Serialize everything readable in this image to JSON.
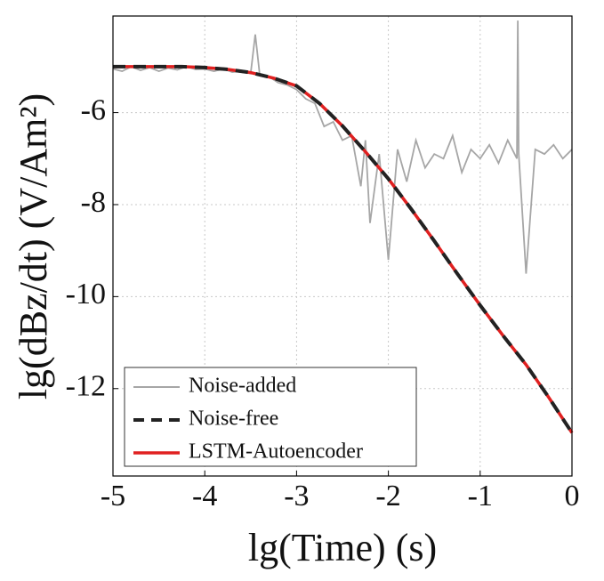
{
  "chart_data": {
    "type": "line",
    "xlabel": "lg(Time) (s)",
    "ylabel": "lg(dBz/dt) (V/Am²)",
    "xlim": [
      -5,
      0
    ],
    "xticks": [
      -5,
      -4,
      -3,
      -2,
      -1,
      0
    ],
    "ylim": [
      -13.9,
      -3.9
    ],
    "yticks": [
      -12,
      -10,
      -8,
      -6
    ],
    "grid": true,
    "legend": "lower left",
    "series": [
      {
        "name": "Noise-added",
        "color": "#a6a6a6",
        "linestyle": "solid",
        "x": [
          -5,
          -4.9,
          -4.8,
          -4.7,
          -4.6,
          -4.5,
          -4.4,
          -4.3,
          -4.2,
          -4.1,
          -4.0,
          -3.9,
          -3.8,
          -3.7,
          -3.6,
          -3.5,
          -3.45,
          -3.4,
          -3.3,
          -3.2,
          -3.1,
          -3.0,
          -2.9,
          -2.8,
          -2.7,
          -2.6,
          -2.5,
          -2.4,
          -2.3,
          -2.25,
          -2.2,
          -2.1,
          -2.0,
          -1.9,
          -1.8,
          -1.7,
          -1.6,
          -1.5,
          -1.4,
          -1.3,
          -1.2,
          -1.1,
          -1.0,
          -0.9,
          -0.8,
          -0.7,
          -0.6,
          -0.59,
          -0.58,
          -0.5,
          -0.4,
          -0.3,
          -0.2,
          -0.1,
          0
        ],
        "values": [
          -5.05,
          -5.1,
          -5.0,
          -5.08,
          -5.02,
          -5.1,
          -5.03,
          -5.07,
          -5.0,
          -5.06,
          -5.05,
          -5.1,
          -5.05,
          -5.12,
          -5.1,
          -5.15,
          -4.3,
          -5.2,
          -5.22,
          -5.35,
          -5.4,
          -5.5,
          -5.7,
          -5.8,
          -6.3,
          -6.2,
          -6.6,
          -6.5,
          -7.6,
          -6.6,
          -8.4,
          -6.9,
          -9.2,
          -6.8,
          -7.5,
          -6.6,
          -7.2,
          -6.9,
          -7.0,
          -6.5,
          -7.3,
          -6.8,
          -7.0,
          -6.7,
          -7.1,
          -6.6,
          -7.0,
          -4.0,
          -6.9,
          -9.5,
          -6.8,
          -6.9,
          -6.7,
          -7.0,
          -6.8
        ]
      },
      {
        "name": "Noise-free",
        "color": "#222222",
        "linestyle": "dashed",
        "x": [
          -5,
          -4.75,
          -4.5,
          -4.25,
          -4,
          -3.75,
          -3.5,
          -3.25,
          -3,
          -2.75,
          -2.5,
          -2.25,
          -2,
          -1.75,
          -1.5,
          -1.25,
          -1,
          -0.75,
          -0.5,
          -0.25,
          0
        ],
        "values": [
          -5.0,
          -5.0,
          -5.0,
          -5.0,
          -5.02,
          -5.06,
          -5.13,
          -5.25,
          -5.42,
          -5.8,
          -6.29,
          -6.85,
          -7.44,
          -8.1,
          -8.79,
          -9.5,
          -10.19,
          -10.85,
          -11.48,
          -12.2,
          -12.96
        ]
      },
      {
        "name": "LSTM-Autoencoder",
        "color": "#e02020",
        "linestyle": "solid",
        "x": [
          -5,
          -4.75,
          -4.5,
          -4.25,
          -4,
          -3.75,
          -3.5,
          -3.25,
          -3,
          -2.75,
          -2.5,
          -2.25,
          -2,
          -1.75,
          -1.5,
          -1.25,
          -1,
          -0.75,
          -0.5,
          -0.25,
          0
        ],
        "values": [
          -5.0,
          -5.0,
          -5.0,
          -5.0,
          -5.02,
          -5.06,
          -5.13,
          -5.25,
          -5.42,
          -5.8,
          -6.29,
          -6.85,
          -7.44,
          -8.1,
          -8.79,
          -9.5,
          -10.19,
          -10.85,
          -11.48,
          -12.2,
          -12.96
        ]
      }
    ]
  }
}
